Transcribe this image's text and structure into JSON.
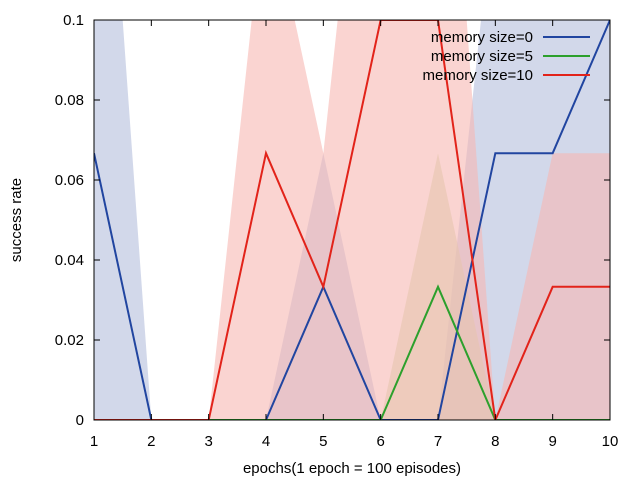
{
  "chart_data": {
    "type": "line",
    "xlabel": "epochs(1 epoch = 100 episodes)",
    "ylabel": "success rate",
    "xlim": [
      1,
      10
    ],
    "ylim": [
      0,
      0.1
    ],
    "x": [
      1,
      2,
      3,
      4,
      5,
      6,
      7,
      8,
      9,
      10
    ],
    "x_ticks": [
      "1",
      "2",
      "3",
      "4",
      "5",
      "6",
      "7",
      "8",
      "9",
      "10"
    ],
    "y_ticks": [
      "0",
      "0.02",
      "0.04",
      "0.06",
      "0.08",
      "0.1"
    ],
    "y_tick_values": [
      0,
      0.02,
      0.04,
      0.06,
      0.08,
      0.1
    ],
    "grid": false,
    "legend_position": "top-right",
    "series": [
      {
        "name": "memory size=0",
        "color": "#2145a0",
        "band_color": "#b4bedc",
        "values": [
          0.0667,
          0,
          0,
          0,
          0.0333,
          0,
          0,
          0.0667,
          0.0667,
          0.1
        ],
        "band_low": [
          0,
          0,
          0,
          0,
          0,
          0,
          0,
          0,
          0,
          0
        ],
        "band_high": [
          0.2,
          0,
          0,
          0,
          0.0667,
          0,
          0,
          0.1333,
          0.1333,
          0.2
        ]
      },
      {
        "name": "memory size=5",
        "color": "#2ca02c",
        "band_color": "#cfd8a8",
        "values": [
          0,
          0,
          0,
          0,
          0,
          0,
          0.0333,
          0,
          0,
          0
        ],
        "band_low": [
          0,
          0,
          0,
          0,
          0,
          0,
          0,
          0,
          0,
          0
        ],
        "band_high": [
          0,
          0,
          0,
          0,
          0,
          0,
          0.0667,
          0,
          0,
          0
        ]
      },
      {
        "name": "memory size=10",
        "color": "#e2231a",
        "band_color": "#f7b7b3",
        "values": [
          0,
          0,
          0,
          0.0667,
          0.0333,
          0.1,
          0.1,
          0,
          0.0333,
          0.0333
        ],
        "band_low": [
          0,
          0,
          0,
          0,
          0,
          0,
          0,
          0,
          0,
          0
        ],
        "band_high": [
          0,
          0,
          0,
          0.1333,
          0.0667,
          0.2,
          0.2,
          0,
          0.0667,
          0.0667
        ]
      }
    ]
  }
}
